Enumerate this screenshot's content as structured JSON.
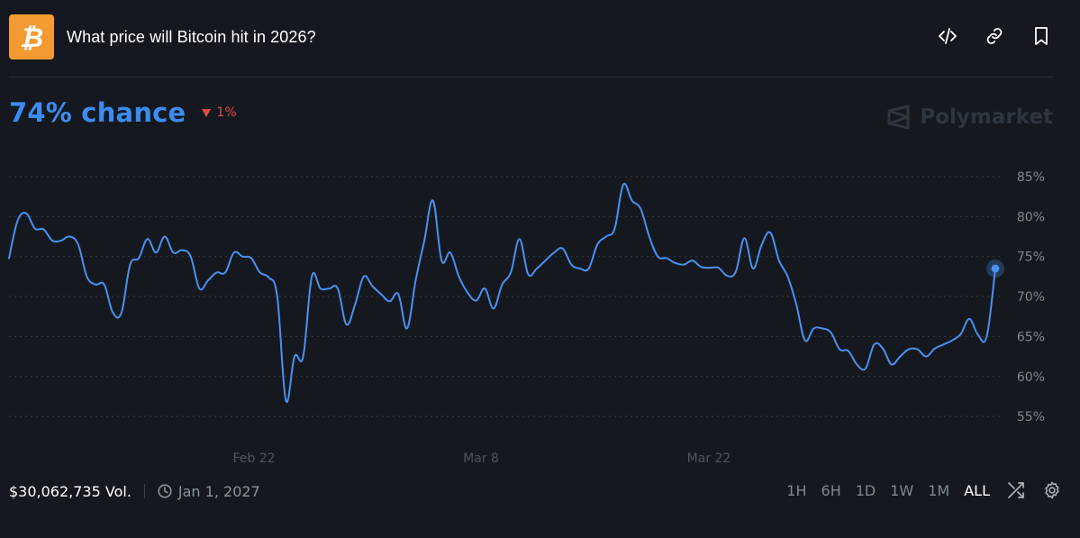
{
  "header": {
    "title": "What price will Bitcoin hit in 2026?",
    "logo_symbol": "₿",
    "logo_color": "#f39a32"
  },
  "header_icons": [
    "code-icon",
    "link-icon",
    "bookmark-icon"
  ],
  "summary": {
    "chance": "74% chance",
    "change": "1%",
    "change_direction": "down",
    "accent": "#3b8cf0",
    "down_color": "#e04a4a"
  },
  "brand": {
    "name": "Polymarket"
  },
  "footer": {
    "volume": "$30,062,735 Vol.",
    "end_date": "Jan 1, 2027",
    "ranges": [
      "1H",
      "6H",
      "1D",
      "1W",
      "1M",
      "ALL"
    ],
    "active_range": "ALL"
  },
  "chart_data": {
    "type": "line",
    "x_tick_labels": [
      "Feb 22",
      "Mar 8",
      "Mar 22"
    ],
    "y_tick_labels": [
      "85%",
      "80%",
      "75%",
      "70%",
      "65%",
      "60%",
      "55%"
    ],
    "ylim": [
      52.5,
      87.5
    ],
    "grid": true,
    "line_color": "#4a90f0",
    "series": [
      {
        "values": [
          74.8,
          79.5,
          80.4,
          78.5,
          78.4,
          77,
          77,
          77.5,
          76.5,
          72.5,
          71.5,
          71.5,
          68,
          68,
          74,
          74.8,
          77.2,
          75.5,
          77.5,
          75.5,
          75.8,
          75,
          71,
          72,
          73,
          73,
          75.5,
          75,
          74.8,
          73,
          72.4,
          70,
          57,
          62.5,
          62.5,
          72.5,
          71,
          71,
          71,
          66.5,
          69,
          72.5,
          71.3,
          70.3,
          69.4,
          70.3,
          66,
          72,
          77,
          82,
          74.5,
          75.5,
          72.5,
          70.5,
          69.5,
          71,
          68.5,
          71.5,
          73,
          77.2,
          72.8,
          73.5,
          74.5,
          75.5,
          76,
          74,
          73.5,
          73.5,
          76.5,
          77.5,
          78.5,
          84,
          82,
          81,
          77.5,
          75,
          74.8,
          74.2,
          74,
          74.5,
          73.7,
          73.6,
          73.6,
          72.6,
          73.1,
          77.3,
          73.5,
          76.5,
          78,
          74.5,
          72.5,
          69,
          64.5,
          66,
          66,
          65.5,
          63.4,
          63.2,
          61.5,
          61,
          64,
          63.5,
          61.5,
          62.5,
          63.4,
          63.4,
          62.5,
          63.5,
          64,
          64.5,
          65.3,
          67.2,
          65.2,
          65,
          73.5
        ]
      }
    ]
  }
}
